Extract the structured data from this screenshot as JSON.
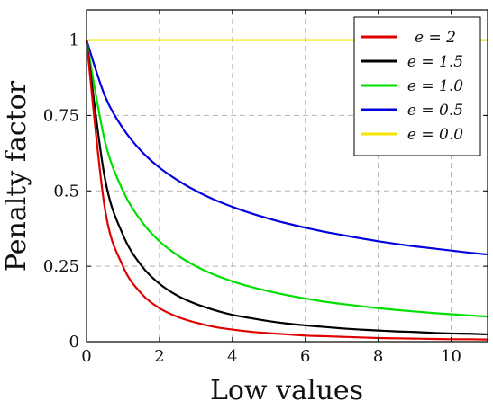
{
  "chart_data": {
    "type": "line",
    "title": "",
    "xlabel": "Low values",
    "ylabel": "Penalty factor",
    "xlim": [
      0,
      11
    ],
    "ylim": [
      0,
      1.1
    ],
    "grid": true,
    "legend_position": "top-right",
    "x_ticks": [
      0,
      2,
      4,
      6,
      8,
      10
    ],
    "x_tick_labels": [
      "0",
      "2",
      "4",
      "6",
      "8",
      "10"
    ],
    "y_ticks": [
      0,
      0.25,
      0.5,
      0.75,
      1
    ],
    "y_tick_labels": [
      "0",
      "0.25",
      "0.5",
      "0.75",
      "1"
    ],
    "x": [
      0,
      0.5,
      1,
      1.5,
      2,
      2.5,
      3,
      3.5,
      4,
      4.5,
      5,
      5.5,
      6,
      6.5,
      7,
      7.5,
      8,
      8.5,
      9,
      9.5,
      10,
      10.5,
      11
    ],
    "series": [
      {
        "name": "e = 2",
        "color": "#e00000",
        "values": [
          1.0,
          0.444,
          0.25,
          0.16,
          0.111,
          0.082,
          0.063,
          0.049,
          0.04,
          0.033,
          0.028,
          0.024,
          0.02,
          0.018,
          0.016,
          0.014,
          0.012,
          0.011,
          0.01,
          0.009,
          0.008,
          0.008,
          0.007
        ]
      },
      {
        "name": "e = 1.5",
        "color": "#000000",
        "values": [
          1.0,
          0.544,
          0.354,
          0.253,
          0.192,
          0.152,
          0.125,
          0.105,
          0.089,
          0.078,
          0.068,
          0.06,
          0.054,
          0.049,
          0.044,
          0.04,
          0.037,
          0.034,
          0.032,
          0.029,
          0.027,
          0.026,
          0.024
        ]
      },
      {
        "name": "e = 1.0",
        "color": "#00e000",
        "values": [
          1.0,
          0.667,
          0.5,
          0.4,
          0.333,
          0.286,
          0.25,
          0.222,
          0.2,
          0.182,
          0.167,
          0.154,
          0.143,
          0.133,
          0.125,
          0.118,
          0.111,
          0.105,
          0.1,
          0.095,
          0.091,
          0.087,
          0.083
        ]
      },
      {
        "name": "e = 0.5",
        "color": "#0000e0",
        "values": [
          1.0,
          0.816,
          0.707,
          0.632,
          0.577,
          0.535,
          0.5,
          0.471,
          0.447,
          0.426,
          0.408,
          0.392,
          0.378,
          0.365,
          0.354,
          0.343,
          0.333,
          0.324,
          0.316,
          0.309,
          0.302,
          0.295,
          0.289
        ]
      },
      {
        "name": "e = 0.0",
        "color": "#f5e600",
        "values": [
          1,
          1,
          1,
          1,
          1,
          1,
          1,
          1,
          1,
          1,
          1,
          1,
          1,
          1,
          1,
          1,
          1,
          1,
          1,
          1,
          1,
          1,
          1
        ]
      }
    ]
  }
}
